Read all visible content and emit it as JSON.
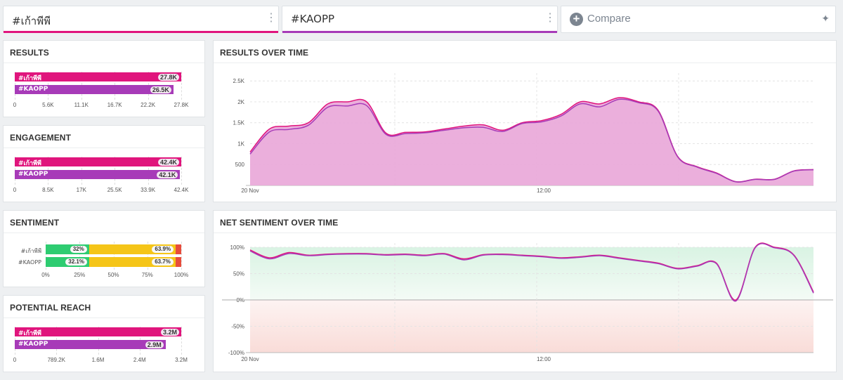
{
  "tabs": [
    {
      "label": "#เก้าพีพี",
      "color": "#e0157d"
    },
    {
      "label": "#KAOPP",
      "color": "#a73bb8"
    }
  ],
  "compare": {
    "label": "Compare"
  },
  "results": {
    "title": "RESULTS",
    "bars": [
      {
        "name": "#เก้าพีพี",
        "value": "27.8K",
        "raw": 27.8,
        "color": "#e0157d"
      },
      {
        "name": "#KAOPP",
        "value": "26.5K",
        "raw": 26.5,
        "color": "#a73bb8"
      }
    ],
    "max": 27.8,
    "ticks": [
      "0",
      "5.6K",
      "11.1K",
      "16.7K",
      "22.2K",
      "27.8K"
    ]
  },
  "engagement": {
    "title": "ENGAGEMENT",
    "bars": [
      {
        "name": "#เก้าพีพี",
        "value": "42.4K",
        "raw": 42.4,
        "color": "#e0157d"
      },
      {
        "name": "#KAOPP",
        "value": "42.1K",
        "raw": 42.1,
        "color": "#a73bb8"
      }
    ],
    "max": 42.4,
    "ticks": [
      "0",
      "8.5K",
      "17K",
      "25.5K",
      "33.9K",
      "42.4K"
    ]
  },
  "sentiment": {
    "title": "SENTIMENT",
    "rows": [
      {
        "name": "#เก้าพีพี",
        "positive": 32,
        "neutral": 63.9,
        "negative": 4.1,
        "positive_label": "32%",
        "neutral_label": "63.9%"
      },
      {
        "name": "#KAOPP",
        "positive": 32.1,
        "neutral": 63.7,
        "negative": 4.2,
        "positive_label": "32.1%",
        "neutral_label": "63.7%"
      }
    ],
    "colors": {
      "positive": "#2ecc71",
      "neutral": "#f5c518",
      "negative": "#e74c3c"
    },
    "ticks": [
      "0%",
      "25%",
      "50%",
      "75%",
      "100%"
    ]
  },
  "reach": {
    "title": "POTENTIAL REACH",
    "bars": [
      {
        "name": "#เก้าพีพี",
        "value": "3.2M",
        "raw": 3.2,
        "color": "#e0157d"
      },
      {
        "name": "#KAOPP",
        "value": "2.9M",
        "raw": 2.9,
        "color": "#a73bb8"
      }
    ],
    "max": 3.2,
    "ticks": [
      "0",
      "789.2K",
      "1.6M",
      "2.4M",
      "3.2M"
    ]
  },
  "results_over_time": {
    "title": "RESULTS OVER TIME",
    "chart_data": {
      "type": "area",
      "title": "RESULTS OVER TIME",
      "x_ticks": [
        "20 Nov",
        "12:00"
      ],
      "y_ticks": [
        "500",
        "1K",
        "1.5K",
        "2K",
        "2.5K"
      ],
      "ylim": [
        0,
        2500
      ],
      "series": [
        {
          "name": "#เก้าพีพี",
          "color": "#e0157d",
          "values": [
            800,
            1350,
            1420,
            1500,
            1950,
            2000,
            2000,
            1250,
            1270,
            1280,
            1350,
            1420,
            1450,
            1320,
            1500,
            1550,
            1700,
            2000,
            1950,
            2100,
            2000,
            1800,
            700,
            450,
            300,
            90,
            150,
            150,
            350,
            380
          ]
        },
        {
          "name": "#KAOPP",
          "color": "#a73bb8",
          "values": [
            750,
            1280,
            1340,
            1440,
            1870,
            1900,
            1910,
            1220,
            1240,
            1260,
            1320,
            1380,
            1390,
            1290,
            1480,
            1520,
            1660,
            1950,
            1880,
            2060,
            1980,
            1780,
            690,
            440,
            290,
            85,
            145,
            145,
            345,
            375
          ]
        }
      ]
    }
  },
  "net_sentiment": {
    "title": "NET SENTIMENT OVER TIME",
    "chart_data": {
      "type": "line",
      "title": "NET SENTIMENT OVER TIME",
      "x_ticks": [
        "20 Nov",
        "12:00"
      ],
      "y_ticks": [
        "100%",
        "50%",
        "0%",
        "-50%",
        "-100%"
      ],
      "ylim": [
        -100,
        100
      ],
      "series": [
        {
          "name": "#เก้าพีพี",
          "color": "#e0157d",
          "values": [
            95,
            80,
            90,
            85,
            87,
            88,
            88,
            86,
            87,
            85,
            88,
            78,
            86,
            87,
            85,
            83,
            80,
            82,
            85,
            80,
            75,
            70,
            60,
            65,
            70,
            0,
            100,
            100,
            85,
            15
          ]
        },
        {
          "name": "#KAOPP",
          "color": "#a73bb8",
          "values": [
            93,
            78,
            88,
            84,
            86,
            87,
            87,
            85,
            86,
            84,
            87,
            76,
            85,
            86,
            84,
            82,
            79,
            81,
            84,
            79,
            74,
            69,
            59,
            64,
            69,
            -2,
            99,
            99,
            84,
            13
          ]
        }
      ]
    }
  }
}
